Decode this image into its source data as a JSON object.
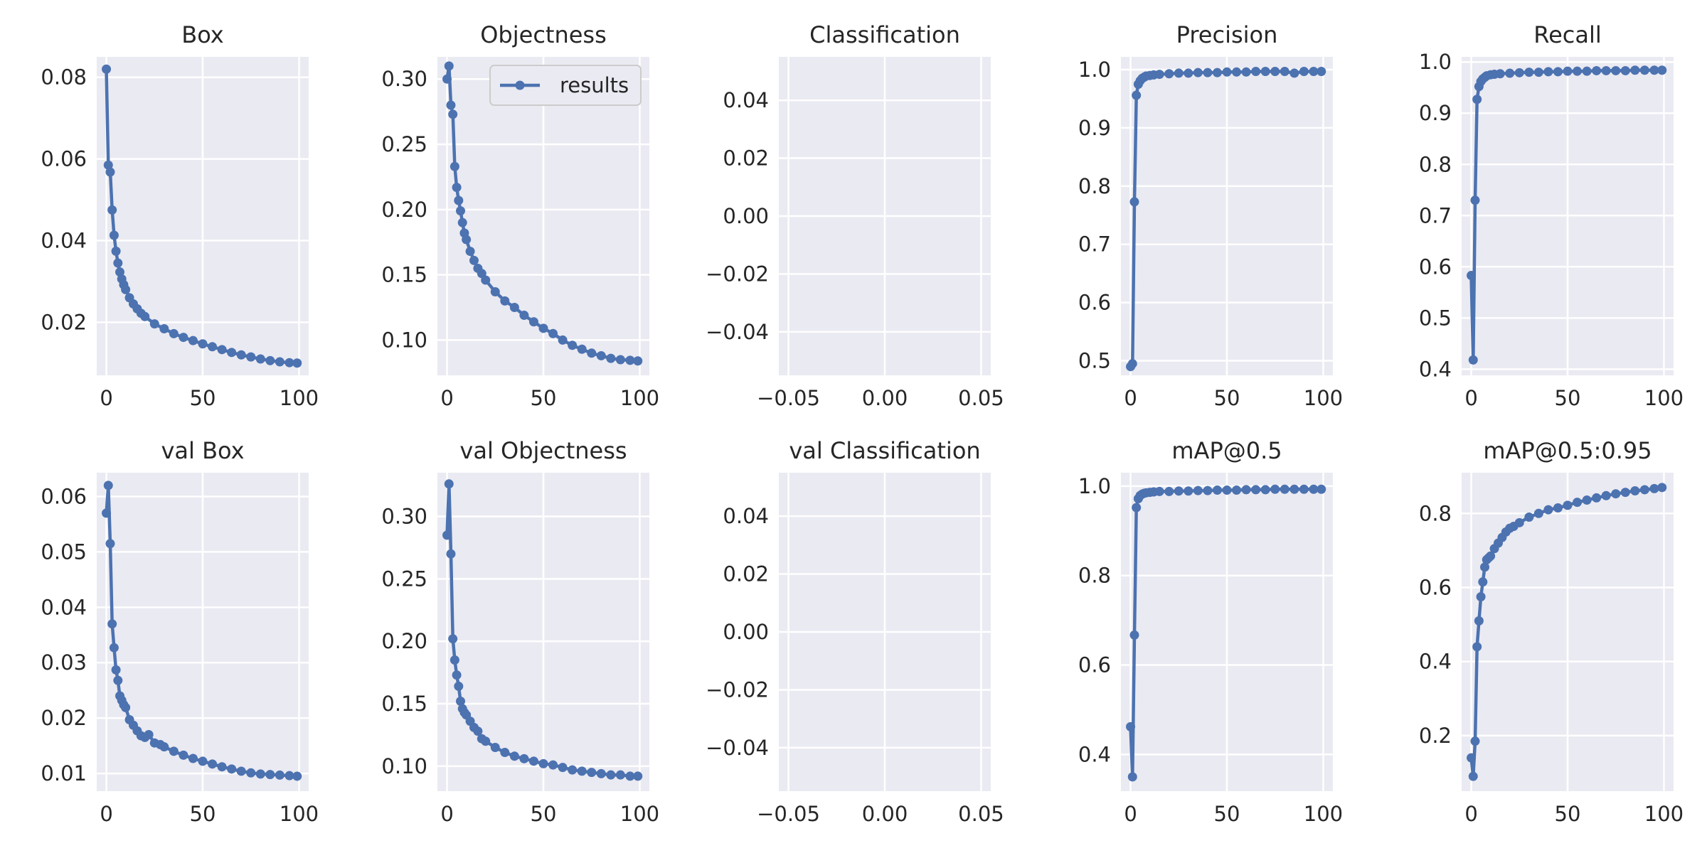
{
  "chart_data": [
    {
      "type": "line",
      "title": "Box",
      "xlim": [
        -5,
        105
      ],
      "ylim": [
        0.007,
        0.085
      ],
      "xticks": [
        0,
        50,
        100
      ],
      "xtick_labels": [
        "0",
        "50",
        "100"
      ],
      "yticks": [
        0.02,
        0.04,
        0.06,
        0.08
      ],
      "ytick_labels": [
        "0.02",
        "0.04",
        "0.06",
        "0.08"
      ],
      "grid": true,
      "series": [
        {
          "x": [
            0,
            1,
            2,
            3,
            4,
            5,
            6,
            7,
            8,
            9,
            10,
            12,
            14,
            16,
            18,
            20,
            25,
            30,
            35,
            40,
            45,
            50,
            55,
            60,
            65,
            70,
            75,
            80,
            85,
            90,
            95,
            99
          ],
          "values": [
            0.082,
            0.0585,
            0.0568,
            0.0475,
            0.0413,
            0.0374,
            0.0345,
            0.0323,
            0.0306,
            0.0292,
            0.028,
            0.026,
            0.0245,
            0.0233,
            0.0222,
            0.0214,
            0.0196,
            0.0184,
            0.0172,
            0.0163,
            0.0155,
            0.0147,
            0.014,
            0.0133,
            0.0126,
            0.012,
            0.0115,
            0.011,
            0.0106,
            0.0103,
            0.0101,
            0.01
          ]
        }
      ]
    },
    {
      "type": "line",
      "title": "Objectness",
      "xlim": [
        -5,
        105
      ],
      "ylim": [
        0.073,
        0.317
      ],
      "xticks": [
        0,
        50,
        100
      ],
      "xtick_labels": [
        "0",
        "50",
        "100"
      ],
      "yticks": [
        0.1,
        0.15,
        0.2,
        0.25,
        0.3
      ],
      "ytick_labels": [
        "0.10",
        "0.15",
        "0.20",
        "0.25",
        "0.30"
      ],
      "grid": true,
      "legend": {
        "labels": [
          "results"
        ],
        "placement": "top-right"
      },
      "series": [
        {
          "name": "results",
          "x": [
            0,
            1,
            2,
            3,
            4,
            5,
            6,
            7,
            8,
            9,
            10,
            12,
            14,
            16,
            18,
            20,
            25,
            30,
            35,
            40,
            45,
            50,
            55,
            60,
            65,
            70,
            75,
            80,
            85,
            90,
            95,
            99
          ],
          "values": [
            0.3,
            0.31,
            0.28,
            0.273,
            0.233,
            0.217,
            0.207,
            0.199,
            0.19,
            0.182,
            0.177,
            0.168,
            0.161,
            0.155,
            0.151,
            0.146,
            0.137,
            0.13,
            0.125,
            0.119,
            0.114,
            0.109,
            0.105,
            0.1,
            0.096,
            0.093,
            0.09,
            0.088,
            0.086,
            0.085,
            0.0845,
            0.084
          ]
        }
      ]
    },
    {
      "type": "line",
      "title": "Classification",
      "xlim": [
        -0.055,
        0.055
      ],
      "ylim": [
        -0.055,
        0.055
      ],
      "xticks": [
        -0.05,
        0,
        0.05
      ],
      "xtick_labels": [
        "−0.05",
        "0.00",
        "0.05"
      ],
      "yticks": [
        -0.04,
        -0.02,
        0,
        0.02,
        0.04
      ],
      "ytick_labels": [
        "−0.04",
        "−0.02",
        "0.00",
        "0.02",
        "0.04"
      ],
      "grid": true,
      "series": []
    },
    {
      "type": "line",
      "title": "Precision",
      "xlim": [
        -5,
        105
      ],
      "ylim": [
        0.475,
        1.022
      ],
      "xticks": [
        0,
        50,
        100
      ],
      "xtick_labels": [
        "0",
        "50",
        "100"
      ],
      "yticks": [
        0.5,
        0.6,
        0.7,
        0.8,
        0.9,
        1.0
      ],
      "ytick_labels": [
        "0.5",
        "0.6",
        "0.7",
        "0.8",
        "0.9",
        "1.0"
      ],
      "grid": true,
      "series": [
        {
          "x": [
            0,
            1,
            2,
            3,
            4,
            5,
            6,
            7,
            8,
            10,
            12,
            15,
            20,
            25,
            30,
            35,
            40,
            45,
            50,
            55,
            60,
            65,
            70,
            75,
            80,
            85,
            90,
            95,
            99
          ],
          "values": [
            0.49,
            0.495,
            0.773,
            0.956,
            0.975,
            0.981,
            0.985,
            0.987,
            0.989,
            0.99,
            0.991,
            0.992,
            0.993,
            0.994,
            0.994,
            0.995,
            0.995,
            0.995,
            0.996,
            0.996,
            0.996,
            0.997,
            0.997,
            0.997,
            0.997,
            0.994,
            0.997,
            0.997,
            0.997
          ]
        }
      ]
    },
    {
      "type": "line",
      "title": "Recall",
      "xlim": [
        -5,
        105
      ],
      "ylim": [
        0.388,
        1.01
      ],
      "xticks": [
        0,
        50,
        100
      ],
      "xtick_labels": [
        "0",
        "50",
        "100"
      ],
      "yticks": [
        0.4,
        0.5,
        0.6,
        0.7,
        0.8,
        0.9,
        1.0
      ],
      "ytick_labels": [
        "0.4",
        "0.5",
        "0.6",
        "0.7",
        "0.8",
        "0.9",
        "1.0"
      ],
      "grid": true,
      "series": [
        {
          "x": [
            0,
            1,
            2,
            3,
            4,
            5,
            6,
            7,
            8,
            10,
            12,
            15,
            20,
            25,
            30,
            35,
            40,
            45,
            50,
            55,
            60,
            65,
            70,
            75,
            80,
            85,
            90,
            95,
            99
          ],
          "values": [
            0.583,
            0.418,
            0.73,
            0.927,
            0.952,
            0.962,
            0.967,
            0.97,
            0.973,
            0.975,
            0.976,
            0.977,
            0.978,
            0.979,
            0.98,
            0.98,
            0.981,
            0.981,
            0.982,
            0.982,
            0.982,
            0.983,
            0.983,
            0.983,
            0.983,
            0.984,
            0.984,
            0.984,
            0.984
          ]
        }
      ]
    },
    {
      "type": "line",
      "title": "val Box",
      "xlim": [
        -5,
        105
      ],
      "ylim": [
        0.0068,
        0.0643
      ],
      "xticks": [
        0,
        50,
        100
      ],
      "xtick_labels": [
        "0",
        "50",
        "100"
      ],
      "yticks": [
        0.01,
        0.02,
        0.03,
        0.04,
        0.05,
        0.06
      ],
      "ytick_labels": [
        "0.01",
        "0.02",
        "0.03",
        "0.04",
        "0.05",
        "0.06"
      ],
      "grid": true,
      "series": [
        {
          "x": [
            0,
            1,
            2,
            3,
            4,
            5,
            6,
            7,
            8,
            9,
            10,
            12,
            14,
            16,
            18,
            20,
            22,
            25,
            28,
            30,
            35,
            40,
            45,
            50,
            55,
            60,
            65,
            70,
            75,
            80,
            85,
            90,
            95,
            99
          ],
          "values": [
            0.057,
            0.062,
            0.0515,
            0.037,
            0.0327,
            0.0287,
            0.0268,
            0.024,
            0.0232,
            0.0224,
            0.0219,
            0.0197,
            0.0187,
            0.0177,
            0.0168,
            0.0165,
            0.017,
            0.0155,
            0.0152,
            0.0148,
            0.014,
            0.0133,
            0.0127,
            0.0122,
            0.0117,
            0.0112,
            0.0108,
            0.0104,
            0.0101,
            0.0099,
            0.0098,
            0.0097,
            0.0096,
            0.0095
          ]
        }
      ]
    },
    {
      "type": "line",
      "title": "val Objectness",
      "xlim": [
        -5,
        105
      ],
      "ylim": [
        0.08,
        0.335
      ],
      "xticks": [
        0,
        50,
        100
      ],
      "xtick_labels": [
        "0",
        "50",
        "100"
      ],
      "yticks": [
        0.1,
        0.15,
        0.2,
        0.25,
        0.3
      ],
      "ytick_labels": [
        "0.10",
        "0.15",
        "0.20",
        "0.25",
        "0.30"
      ],
      "grid": true,
      "series": [
        {
          "x": [
            0,
            1,
            2,
            3,
            4,
            5,
            6,
            7,
            8,
            9,
            10,
            12,
            14,
            16,
            18,
            20,
            25,
            30,
            35,
            40,
            45,
            50,
            55,
            60,
            65,
            70,
            75,
            80,
            85,
            90,
            95,
            99
          ],
          "values": [
            0.285,
            0.326,
            0.27,
            0.202,
            0.185,
            0.173,
            0.164,
            0.152,
            0.146,
            0.143,
            0.141,
            0.136,
            0.131,
            0.128,
            0.122,
            0.12,
            0.115,
            0.111,
            0.108,
            0.106,
            0.104,
            0.102,
            0.101,
            0.099,
            0.097,
            0.096,
            0.095,
            0.094,
            0.093,
            0.093,
            0.092,
            0.092
          ]
        }
      ]
    },
    {
      "type": "line",
      "title": "val Classification",
      "xlim": [
        -0.055,
        0.055
      ],
      "ylim": [
        -0.055,
        0.055
      ],
      "xticks": [
        -0.05,
        0,
        0.05
      ],
      "xtick_labels": [
        "−0.05",
        "0.00",
        "0.05"
      ],
      "yticks": [
        -0.04,
        -0.02,
        0,
        0.02,
        0.04
      ],
      "ytick_labels": [
        "−0.04",
        "−0.02",
        "0.00",
        "0.02",
        "0.04"
      ],
      "grid": true,
      "series": []
    },
    {
      "type": "line",
      "title": "mAP@0.5",
      "xlim": [
        -5,
        105
      ],
      "ylim": [
        0.318,
        1.03
      ],
      "xticks": [
        0,
        50,
        100
      ],
      "xtick_labels": [
        "0",
        "50",
        "100"
      ],
      "yticks": [
        0.4,
        0.6,
        0.8,
        1.0
      ],
      "ytick_labels": [
        "0.4",
        "0.6",
        "0.8",
        "1.0"
      ],
      "grid": true,
      "series": [
        {
          "x": [
            0,
            1,
            2,
            3,
            4,
            5,
            6,
            7,
            8,
            10,
            12,
            15,
            20,
            25,
            30,
            35,
            40,
            45,
            50,
            55,
            60,
            65,
            70,
            75,
            80,
            85,
            90,
            95,
            99
          ],
          "values": [
            0.462,
            0.35,
            0.667,
            0.952,
            0.972,
            0.979,
            0.982,
            0.984,
            0.985,
            0.986,
            0.987,
            0.988,
            0.988,
            0.989,
            0.989,
            0.99,
            0.99,
            0.991,
            0.991,
            0.991,
            0.992,
            0.992,
            0.992,
            0.993,
            0.993,
            0.993,
            0.993,
            0.993,
            0.993
          ]
        }
      ]
    },
    {
      "type": "line",
      "title": "mAP@0.5:0.95",
      "xlim": [
        -5,
        105
      ],
      "ylim": [
        0.05,
        0.91
      ],
      "xticks": [
        0,
        50,
        100
      ],
      "xtick_labels": [
        "0",
        "50",
        "100"
      ],
      "yticks": [
        0.2,
        0.4,
        0.6,
        0.8
      ],
      "ytick_labels": [
        "0.2",
        "0.4",
        "0.6",
        "0.8"
      ],
      "grid": true,
      "series": [
        {
          "x": [
            0,
            1,
            2,
            3,
            4,
            5,
            6,
            7,
            8,
            9,
            10,
            12,
            14,
            16,
            18,
            20,
            22,
            25,
            30,
            35,
            40,
            45,
            50,
            55,
            60,
            65,
            70,
            75,
            80,
            85,
            90,
            95,
            99
          ],
          "values": [
            0.14,
            0.09,
            0.185,
            0.44,
            0.51,
            0.575,
            0.615,
            0.655,
            0.675,
            0.68,
            0.685,
            0.705,
            0.72,
            0.735,
            0.75,
            0.76,
            0.765,
            0.775,
            0.79,
            0.8,
            0.81,
            0.815,
            0.822,
            0.83,
            0.836,
            0.842,
            0.848,
            0.853,
            0.857,
            0.861,
            0.864,
            0.867,
            0.87
          ]
        }
      ]
    }
  ],
  "colors": {
    "line": "#4c72b0",
    "axes_bg": "#eaeaf2",
    "grid": "#ffffff",
    "text": "#262626",
    "legend_border": "#cccccc"
  }
}
